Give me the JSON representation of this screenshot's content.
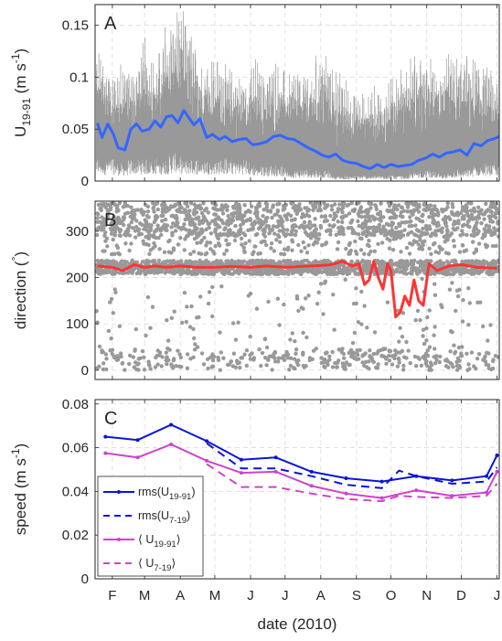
{
  "chart_data": [
    {
      "panel": "A",
      "type": "line",
      "ylabel": "U19-91 (m s-1)",
      "ylabel_parts": {
        "base": "U",
        "sub": "19-91",
        "unit_open": " (m s",
        "unit_sup": "-1",
        "unit_close": ")"
      },
      "ylim": [
        0,
        0.17
      ],
      "yticks": [
        0,
        0.05,
        0.1,
        0.15
      ],
      "ytick_labels": [
        "0",
        "0.05",
        "0.1",
        "0.15"
      ],
      "x_range": [
        "2010-01-17",
        "2011-01-03"
      ],
      "grid": true,
      "series": [
        {
          "color": "#999999",
          "style": "envelope",
          "x": [
            "2010-01-22",
            "2010-02-01",
            "2010-02-10",
            "2010-02-20",
            "2010-03-01",
            "2010-03-10",
            "2010-03-20",
            "2010-03-28",
            "2010-04-05",
            "2010-04-15",
            "2010-04-25",
            "2010-05-05",
            "2010-05-15",
            "2010-05-25",
            "2010-06-05",
            "2010-06-15",
            "2010-06-25",
            "2010-07-05",
            "2010-07-15",
            "2010-07-25",
            "2010-08-05",
            "2010-08-15",
            "2010-08-25",
            "2010-09-05",
            "2010-09-15",
            "2010-09-25",
            "2010-10-05",
            "2010-10-15",
            "2010-10-25",
            "2010-11-05",
            "2010-11-15",
            "2010-11-25",
            "2010-12-05",
            "2010-12-15",
            "2010-12-25",
            "2011-01-02"
          ],
          "upper": [
            0.13,
            0.11,
            0.12,
            0.11,
            0.14,
            0.12,
            0.155,
            0.17,
            0.165,
            0.13,
            0.12,
            0.12,
            0.11,
            0.1,
            0.12,
            0.11,
            0.12,
            0.11,
            0.115,
            0.12,
            0.13,
            0.11,
            0.1,
            0.09,
            0.1,
            0.09,
            0.12,
            0.12,
            0.13,
            0.12,
            0.13,
            0.12,
            0.13,
            0.12,
            0.11,
            0.1
          ],
          "lower": [
            0.02,
            0.02,
            0.015,
            0.02,
            0.02,
            0.02,
            0.02,
            0.025,
            0.02,
            0.02,
            0.02,
            0.02,
            0.02,
            0.02,
            0.015,
            0.015,
            0.015,
            0.01,
            0.01,
            0.01,
            0.01,
            0.005,
            0.005,
            0.005,
            0.005,
            0.005,
            0.005,
            0.005,
            0.01,
            0.01,
            0.005,
            0.01,
            0.01,
            0.015,
            0.015,
            0.015
          ]
        },
        {
          "color": "#3366ff",
          "style": "line",
          "x": [
            "2010-01-19",
            "2010-01-23",
            "2010-01-28",
            "2010-02-02",
            "2010-02-06",
            "2010-02-12",
            "2010-02-17",
            "2010-02-22",
            "2010-02-27",
            "2010-03-05",
            "2010-03-10",
            "2010-03-15",
            "2010-03-20",
            "2010-03-25",
            "2010-03-30",
            "2010-04-04",
            "2010-04-09",
            "2010-04-13",
            "2010-04-18",
            "2010-04-24",
            "2010-04-29",
            "2010-05-05",
            "2010-05-10",
            "2010-05-16",
            "2010-05-22",
            "2010-05-28",
            "2010-06-03",
            "2010-06-09",
            "2010-06-15",
            "2010-06-21",
            "2010-06-27",
            "2010-07-03",
            "2010-07-09",
            "2010-07-15",
            "2010-07-21",
            "2010-07-27",
            "2010-08-02",
            "2010-08-08",
            "2010-08-14",
            "2010-08-20",
            "2010-08-26",
            "2010-09-01",
            "2010-09-07",
            "2010-09-13",
            "2010-09-19",
            "2010-09-25",
            "2010-10-01",
            "2010-10-07",
            "2010-10-13",
            "2010-10-19",
            "2010-10-25",
            "2010-10-31",
            "2010-11-06",
            "2010-11-12",
            "2010-11-18",
            "2010-11-24",
            "2010-11-30",
            "2010-12-06",
            "2010-12-12",
            "2010-12-18",
            "2010-12-24",
            "2010-12-30",
            "2011-01-03"
          ],
          "y": [
            0.056,
            0.042,
            0.055,
            0.045,
            0.032,
            0.03,
            0.05,
            0.055,
            0.048,
            0.05,
            0.058,
            0.052,
            0.062,
            0.063,
            0.056,
            0.068,
            0.06,
            0.054,
            0.06,
            0.042,
            0.045,
            0.04,
            0.043,
            0.038,
            0.04,
            0.041,
            0.035,
            0.036,
            0.038,
            0.043,
            0.044,
            0.041,
            0.04,
            0.036,
            0.032,
            0.029,
            0.025,
            0.023,
            0.026,
            0.02,
            0.018,
            0.017,
            0.014,
            0.012,
            0.016,
            0.013,
            0.016,
            0.014,
            0.015,
            0.016,
            0.02,
            0.022,
            0.026,
            0.023,
            0.027,
            0.028,
            0.03,
            0.025,
            0.036,
            0.034,
            0.039,
            0.041,
            0.043
          ]
        }
      ]
    },
    {
      "panel": "B",
      "type": "scatter",
      "ylabel": "direction (°)",
      "ylabel_parts": {
        "text": "direction (",
        "sup": "°",
        "close": ")"
      },
      "ylim": [
        -20,
        365
      ],
      "yticks": [
        0,
        100,
        200,
        300
      ],
      "ytick_labels": [
        "0",
        "100",
        "200",
        "300"
      ],
      "x_range": [
        "2010-01-17",
        "2011-01-03"
      ],
      "grid": true,
      "series": [
        {
          "color": "#999999",
          "style": "points",
          "note_points": "dense scatter of hourly directions, concentrated near 220 and 300-360, sparse toward 0"
        },
        {
          "color": "#ff3333",
          "style": "line",
          "x": [
            "2010-01-19",
            "2010-02-01",
            "2010-02-10",
            "2010-02-20",
            "2010-03-01",
            "2010-03-10",
            "2010-03-20",
            "2010-04-01",
            "2010-04-15",
            "2010-05-01",
            "2010-05-15",
            "2010-06-01",
            "2010-06-15",
            "2010-07-01",
            "2010-07-15",
            "2010-08-01",
            "2010-08-10",
            "2010-08-20",
            "2010-08-28",
            "2010-09-03",
            "2010-09-08",
            "2010-09-12",
            "2010-09-16",
            "2010-09-20",
            "2010-09-24",
            "2010-09-28",
            "2010-10-01",
            "2010-10-05",
            "2010-10-09",
            "2010-10-13",
            "2010-10-17",
            "2010-10-21",
            "2010-10-25",
            "2010-10-29",
            "2010-11-03",
            "2010-11-10",
            "2010-11-20",
            "2010-12-01",
            "2010-12-15",
            "2011-01-01"
          ],
          "y": [
            225,
            222,
            215,
            228,
            222,
            225,
            222,
            225,
            222,
            222,
            224,
            222,
            225,
            222,
            224,
            226,
            228,
            235,
            225,
            230,
            185,
            195,
            235,
            200,
            175,
            230,
            215,
            115,
            125,
            160,
            140,
            195,
            150,
            140,
            230,
            215,
            225,
            228,
            222,
            220
          ]
        }
      ]
    },
    {
      "panel": "C",
      "type": "line",
      "ylabel": "speed (m s-1)",
      "ylabel_parts": {
        "text": "speed (m s",
        "sup": "-1",
        "close": ")"
      },
      "ylim": [
        0,
        0.082
      ],
      "yticks": [
        0,
        0.02,
        0.04,
        0.06,
        0.08
      ],
      "ytick_labels": [
        "0",
        "0.02",
        "0.04",
        "0.06",
        "0.08"
      ],
      "x_range": [
        "2010-01-17",
        "2011-01-03"
      ],
      "grid": true,
      "legend_position": "lower-left",
      "series": [
        {
          "name": "rms(U19-91)",
          "name_parts": {
            "pre": "rms(U",
            "sub": "19-91",
            "post": ")"
          },
          "color": "#0a14d6",
          "style": "solid-dot",
          "x": [
            "2010-01-26",
            "2010-02-23",
            "2010-03-24",
            "2010-04-24",
            "2010-05-24",
            "2010-06-23",
            "2010-07-24",
            "2010-08-23",
            "2010-09-23",
            "2010-10-23",
            "2010-11-23",
            "2010-12-23",
            "2011-01-01"
          ],
          "y": [
            0.065,
            0.0635,
            0.0705,
            0.063,
            0.0545,
            0.0555,
            0.049,
            0.046,
            0.0445,
            0.047,
            0.045,
            0.047,
            0.0565
          ]
        },
        {
          "name": "rms(U7-19)",
          "name_parts": {
            "pre": "rms(U",
            "sub": "7-19",
            "post": ")"
          },
          "color": "#0a14d6",
          "style": "dashed",
          "x": [
            "2010-04-24",
            "2010-05-24",
            "2010-06-23",
            "2010-07-24",
            "2010-08-23",
            "2010-09-23",
            "2010-10-08",
            "2010-10-23",
            "2010-11-23",
            "2010-12-23",
            "2011-01-01"
          ],
          "y": [
            0.062,
            0.0505,
            0.0505,
            0.047,
            0.043,
            0.0415,
            0.0495,
            0.047,
            0.0435,
            0.0445,
            0.051
          ]
        },
        {
          "name": "⟨ U19-91⟩",
          "name_parts": {
            "pre": "⟨ U",
            "sub": "19-91",
            "post": "⟩"
          },
          "color": "#cc44cc",
          "style": "solid-dot",
          "x": [
            "2010-01-26",
            "2010-02-23",
            "2010-03-24",
            "2010-04-24",
            "2010-05-24",
            "2010-06-23",
            "2010-07-24",
            "2010-08-23",
            "2010-09-23",
            "2010-10-23",
            "2010-11-23",
            "2010-12-23",
            "2011-01-01"
          ],
          "y": [
            0.0575,
            0.0555,
            0.0615,
            0.054,
            0.0485,
            0.049,
            0.0425,
            0.039,
            0.037,
            0.0405,
            0.038,
            0.0395,
            0.049
          ]
        },
        {
          "name": "⟨ U7-19⟩",
          "name_parts": {
            "pre": "⟨ U",
            "sub": "7-19",
            "post": "⟩"
          },
          "color": "#cc44cc",
          "style": "dashed",
          "x": [
            "2010-04-24",
            "2010-05-24",
            "2010-06-23",
            "2010-07-24",
            "2010-08-23",
            "2010-09-23",
            "2010-10-08",
            "2010-10-23",
            "2010-11-23",
            "2010-12-23",
            "2011-01-01"
          ],
          "y": [
            0.0525,
            0.042,
            0.042,
            0.039,
            0.0365,
            0.0355,
            0.038,
            0.0375,
            0.037,
            0.038,
            0.0435
          ]
        }
      ]
    }
  ],
  "x_axis": {
    "label": "date (2010)",
    "ticks": [
      {
        "date": "2010-02-01",
        "label": "F"
      },
      {
        "date": "2010-03-01",
        "label": "M"
      },
      {
        "date": "2010-04-01",
        "label": "A"
      },
      {
        "date": "2010-05-01",
        "label": "M"
      },
      {
        "date": "2010-06-01",
        "label": "J"
      },
      {
        "date": "2010-07-01",
        "label": "J"
      },
      {
        "date": "2010-08-01",
        "label": "A"
      },
      {
        "date": "2010-09-01",
        "label": "S"
      },
      {
        "date": "2010-10-01",
        "label": "O"
      },
      {
        "date": "2010-11-01",
        "label": "N"
      },
      {
        "date": "2010-12-01",
        "label": "D"
      },
      {
        "date": "2011-01-01",
        "label": "J"
      }
    ]
  }
}
